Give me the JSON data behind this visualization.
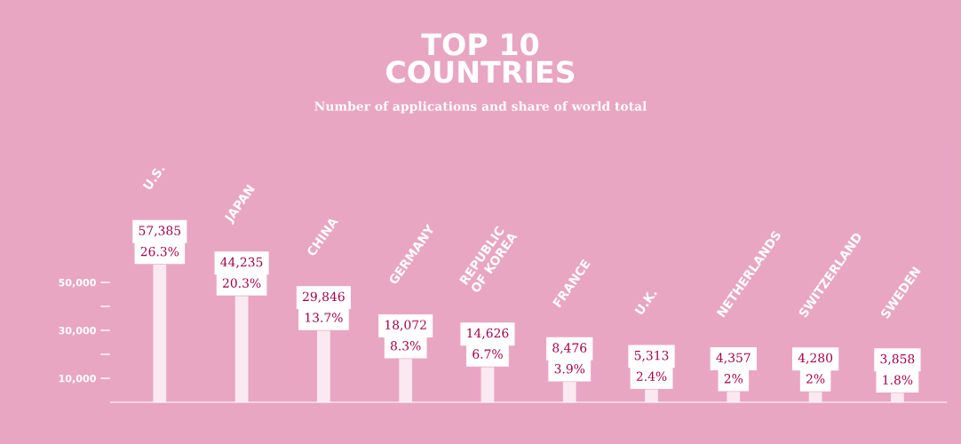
{
  "chart_data": {
    "type": "bar",
    "title": "TOP 10\nCOUNTRIES",
    "subtitle": "Number of applications and share of world total",
    "categories": [
      "U.S.",
      "JAPAN",
      "CHINA",
      "GERMANY",
      "REPUBLIC\nOF KOREA",
      "FRANCE",
      "U.K.",
      "NETHERLANDS",
      "SWITZERLAND",
      "SWEDEN"
    ],
    "values": [
      57385,
      44235,
      29846,
      18072,
      14626,
      8476,
      5313,
      4357,
      4280,
      3858
    ],
    "value_labels": [
      "57,385",
      "44,235",
      "29,846",
      "18,072",
      "14,626",
      "8,476",
      "5,313",
      "4,357",
      "4,280",
      "3,858"
    ],
    "color": "#fbe9f1",
    "annotations": [
      "26.3%",
      "20.3%",
      "13.7%",
      "8.3%",
      "6.7%",
      "3.9%",
      "2.4%",
      "2%",
      "2%",
      "1.8%"
    ],
    "ylim": [
      0,
      110000
    ],
    "yticks": [
      {
        "value": 10000,
        "label": "10,000"
      },
      {
        "value": 20000,
        "label": null
      },
      {
        "value": 30000,
        "label": "30,000"
      },
      {
        "value": 40000,
        "label": null
      },
      {
        "value": 50000,
        "label": "50,000"
      }
    ],
    "grid": false,
    "legend": false
  }
}
